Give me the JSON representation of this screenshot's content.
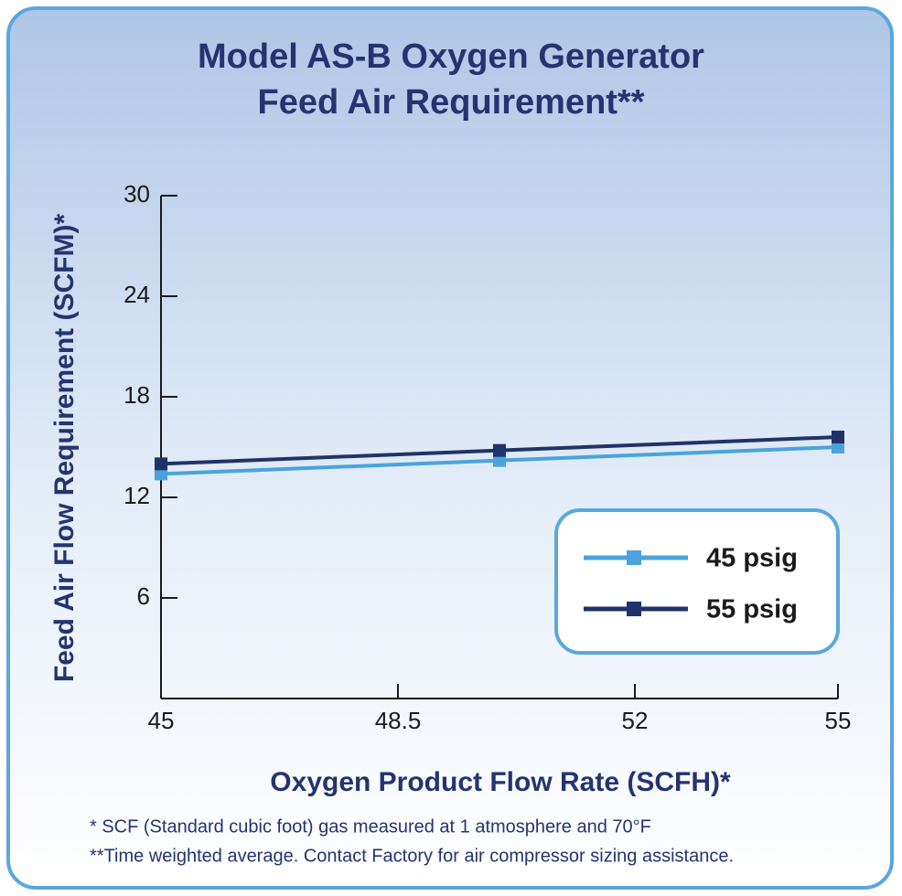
{
  "chart_data": {
    "type": "line",
    "title": [
      "Model AS-B Oxygen Generator",
      "Feed Air Requirement**"
    ],
    "x_label": "Oxygen Product Flow Rate (SCFH)*",
    "y_label": "Feed Air Flow Requirement (SCFM)*",
    "x": [
      45,
      50,
      55
    ],
    "series": [
      {
        "name": "45 psig",
        "color": "#4aa3dd",
        "values": [
          13.4,
          14.2,
          15.0
        ]
      },
      {
        "name": "55 psig",
        "color": "#1f3369",
        "values": [
          14.0,
          14.8,
          15.6
        ]
      }
    ],
    "xlim": [
      45,
      55
    ],
    "xticks": [
      45,
      48.5,
      52,
      55
    ],
    "ylim": [
      0,
      30
    ],
    "yticks": [
      6,
      12,
      18,
      24,
      30
    ],
    "legend": "lower right",
    "notes": [
      "* SCF (Standard cubic foot) gas measured at 1 atmosphere and 70°F",
      "**Time weighted average. Contact Factory for air compressor sizing assistance."
    ]
  }
}
